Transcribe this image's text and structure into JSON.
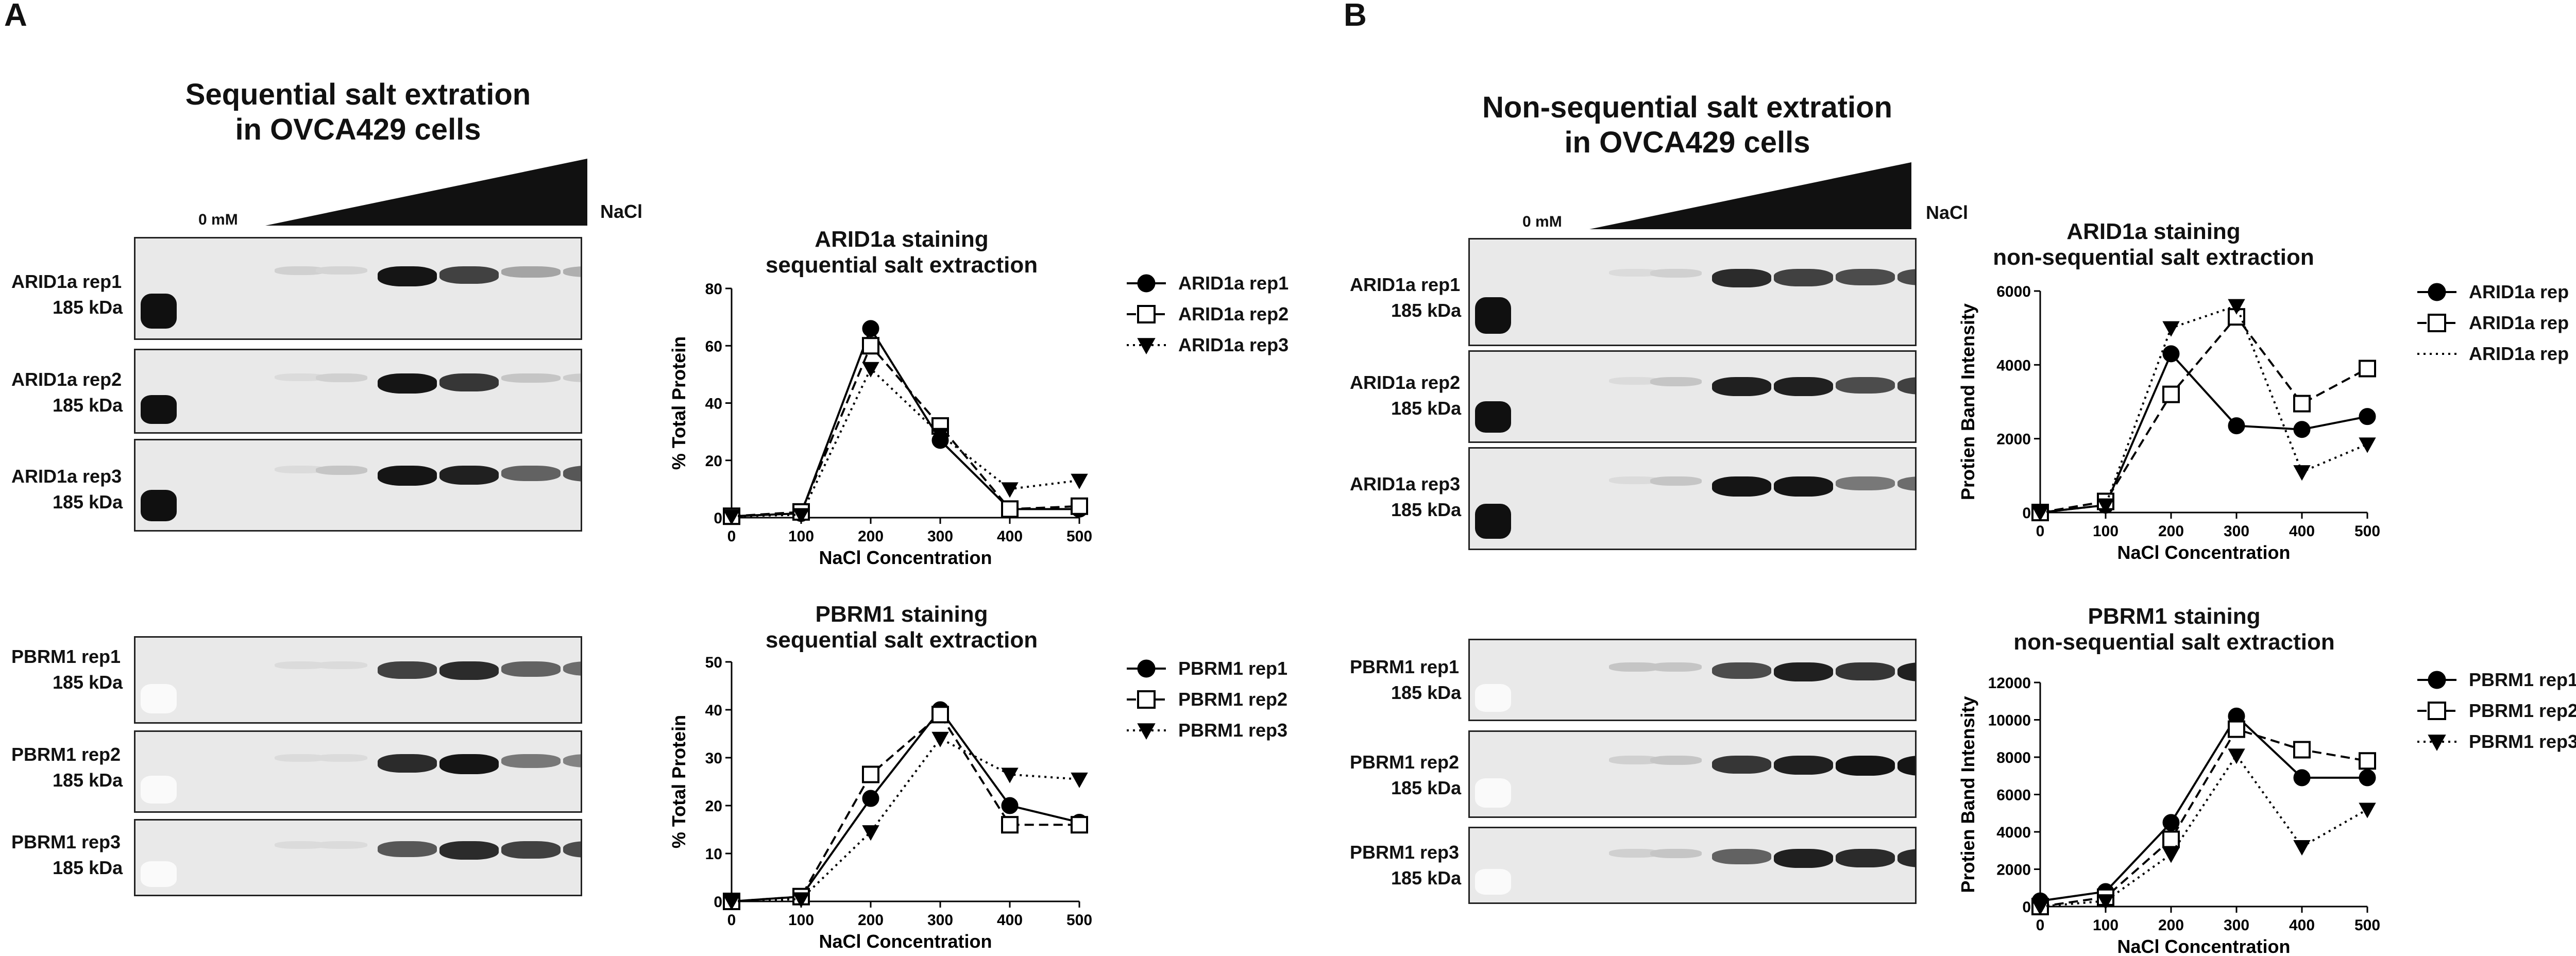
{
  "panels": [
    {
      "letter": "A",
      "title_line1": "Sequential salt extration",
      "title_line2": "in OVCA429 cells",
      "zero_label": "0 mM",
      "nacl_label": "NaCl",
      "blots": [
        {
          "label1": "ARID1a rep1",
          "label2": "185 kDa",
          "bands": [
            0.1,
            0.08,
            0.95,
            0.75,
            0.3,
            0.25
          ]
        },
        {
          "label1": "ARID1a rep2",
          "label2": "185 kDa",
          "bands": [
            0.05,
            0.1,
            0.95,
            0.8,
            0.15,
            0.12
          ]
        },
        {
          "label1": "ARID1a rep3",
          "label2": "185 kDa",
          "bands": [
            0.05,
            0.15,
            0.95,
            0.9,
            0.6,
            0.65
          ]
        },
        {
          "label1": "PBRM1 rep1",
          "label2": "185 kDa",
          "bands": [
            0.05,
            0.05,
            0.75,
            0.85,
            0.6,
            0.55
          ]
        },
        {
          "label1": "PBRM1 rep2",
          "label2": "185 kDa",
          "bands": [
            0.05,
            0.05,
            0.85,
            0.95,
            0.5,
            0.45
          ]
        },
        {
          "label1": "PBRM1 rep3",
          "label2": "185 kDa",
          "bands": [
            0.05,
            0.05,
            0.65,
            0.85,
            0.75,
            0.7
          ]
        }
      ]
    },
    {
      "letter": "B",
      "title_line1": "Non-sequential salt extration",
      "title_line2": "in OVCA429 cells",
      "zero_label": "0 mM",
      "nacl_label": "NaCl",
      "blots": [
        {
          "label1": "ARID1a rep1",
          "label2": "185 kDa",
          "bands": [
            0.05,
            0.1,
            0.85,
            0.75,
            0.7,
            0.7
          ]
        },
        {
          "label1": "ARID1a rep2",
          "label2": "185 kDa",
          "bands": [
            0.05,
            0.15,
            0.9,
            0.9,
            0.7,
            0.75
          ]
        },
        {
          "label1": "ARID1a rep3",
          "label2": "185 kDa",
          "bands": [
            0.05,
            0.15,
            0.95,
            0.95,
            0.5,
            0.55
          ]
        },
        {
          "label1": "PBRM1 rep1",
          "label2": "185 kDa",
          "bands": [
            0.15,
            0.15,
            0.7,
            0.9,
            0.8,
            0.9
          ]
        },
        {
          "label1": "PBRM1 rep2",
          "label2": "185 kDa",
          "bands": [
            0.1,
            0.15,
            0.8,
            0.9,
            0.95,
            0.95
          ]
        },
        {
          "label1": "PBRM1 rep3",
          "label2": "185 kDa",
          "bands": [
            0.1,
            0.15,
            0.6,
            0.9,
            0.85,
            0.85
          ]
        }
      ]
    }
  ],
  "chart_data": [
    {
      "type": "line",
      "title_line1": "ARID1a staining",
      "title_line2": "sequential salt extraction",
      "xlabel": "NaCl Concentration",
      "ylabel": "% Total Protein",
      "ylim": [
        0,
        80
      ],
      "yticks": [
        0,
        20,
        40,
        60,
        80
      ],
      "x": [
        0,
        100,
        200,
        300,
        400,
        500
      ],
      "series": [
        {
          "name": "ARID1a rep1",
          "values": [
            0.5,
            1.5,
            66,
            27,
            3,
            3
          ],
          "marker": "circle",
          "dash": "solid"
        },
        {
          "name": "ARID1a rep2",
          "values": [
            0.5,
            2,
            60,
            32,
            3,
            4
          ],
          "marker": "square",
          "dash": "dashed"
        },
        {
          "name": "ARID1a rep3",
          "values": [
            0.5,
            1,
            52,
            29,
            10,
            13
          ],
          "marker": "triangle",
          "dash": "dotted"
        }
      ]
    },
    {
      "type": "line",
      "title_line1": "PBRM1 staining",
      "title_line2": "sequential salt extraction",
      "xlabel": "NaCl Concentration",
      "ylabel": "% Total Protein",
      "ylim": [
        0,
        50
      ],
      "yticks": [
        0,
        10,
        20,
        30,
        40,
        50
      ],
      "x": [
        0,
        100,
        200,
        300,
        400,
        500
      ],
      "series": [
        {
          "name": "PBRM1 rep1",
          "values": [
            0,
            1,
            21.5,
            40,
            20,
            16.5
          ],
          "marker": "circle",
          "dash": "solid"
        },
        {
          "name": "PBRM1 rep2",
          "values": [
            0,
            1,
            26.5,
            39,
            16,
            16
          ],
          "marker": "square",
          "dash": "dashed"
        },
        {
          "name": "PBRM1 rep3",
          "values": [
            0,
            0.5,
            14.5,
            34,
            26.5,
            25.5
          ],
          "marker": "triangle",
          "dash": "dotted"
        }
      ]
    },
    {
      "type": "line",
      "title_line1": "ARID1a staining",
      "title_line2": "non-sequential salt extraction",
      "xlabel": "NaCl Concentration",
      "ylabel": "Protien Band Intensity",
      "ylim": [
        0,
        6000
      ],
      "yticks": [
        0,
        2000,
        4000,
        6000
      ],
      "x": [
        0,
        100,
        200,
        300,
        400,
        500
      ],
      "series": [
        {
          "name": "ARID1a rep",
          "values": [
            0,
            200,
            4300,
            2350,
            2250,
            2600
          ],
          "marker": "circle",
          "dash": "solid"
        },
        {
          "name": "ARID1a rep",
          "values": [
            0,
            300,
            3200,
            5300,
            2950,
            3900
          ],
          "marker": "square",
          "dash": "dashed"
        },
        {
          "name": "ARID1a rep",
          "values": [
            0,
            200,
            5000,
            5600,
            1100,
            1850
          ],
          "marker": "triangle",
          "dash": "dotted"
        }
      ]
    },
    {
      "type": "line",
      "title_line1": "PBRM1 staining",
      "title_line2": "non-sequential salt extraction",
      "xlabel": "NaCl Concentration",
      "ylabel": "Protien Band Intensity",
      "ylim": [
        0,
        12000
      ],
      "yticks": [
        0,
        2000,
        4000,
        6000,
        8000,
        10000,
        12000
      ],
      "x": [
        0,
        100,
        200,
        300,
        400,
        500
      ],
      "series": [
        {
          "name": "PBRM1 rep1",
          "values": [
            300,
            800,
            4500,
            10200,
            6900,
            6900
          ],
          "marker": "circle",
          "dash": "solid"
        },
        {
          "name": "PBRM1 rep2",
          "values": [
            0,
            500,
            3600,
            9500,
            8400,
            7800
          ],
          "marker": "square",
          "dash": "dashed"
        },
        {
          "name": "PBRM1 rep3",
          "values": [
            0,
            300,
            2800,
            8100,
            3200,
            5200
          ],
          "marker": "triangle",
          "dash": "dotted"
        }
      ]
    }
  ]
}
